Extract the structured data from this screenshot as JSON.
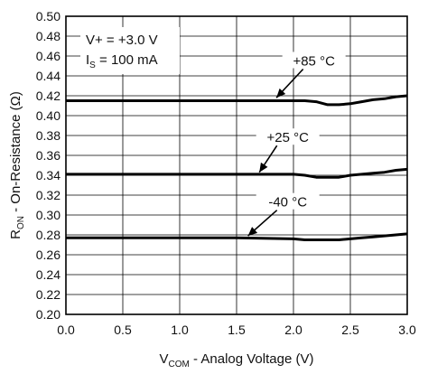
{
  "chart_data": {
    "type": "line",
    "xlabel": {
      "main": "V",
      "sub": "COM",
      "rest": " - Analog Voltage (V)"
    },
    "ylabel": {
      "main": "R",
      "sub": "ON",
      "rest": " - On-Resistance (Ω)"
    },
    "xlim": [
      0.0,
      3.0
    ],
    "ylim": [
      0.2,
      0.5
    ],
    "x_ticks": [
      "0.0",
      "0.5",
      "1.0",
      "1.5",
      "2.0",
      "2.5",
      "3.0"
    ],
    "y_ticks": [
      "0.20",
      "0.22",
      "0.24",
      "0.26",
      "0.28",
      "0.30",
      "0.32",
      "0.34",
      "0.36",
      "0.38",
      "0.40",
      "0.42",
      "0.44",
      "0.46",
      "0.48",
      "0.50"
    ],
    "grid": true,
    "conditions": [
      {
        "main": "V+ = +3.0 V",
        "sub": ""
      },
      {
        "main": "I",
        "sub": "S",
        "rest": " = 100 mA"
      }
    ],
    "series": [
      {
        "name": "+85 °C",
        "x": [
          0.0,
          0.5,
          1.0,
          1.5,
          2.0,
          2.1,
          2.2,
          2.3,
          2.4,
          2.5,
          2.6,
          2.7,
          2.8,
          2.9,
          3.0
        ],
        "y": [
          0.415,
          0.415,
          0.415,
          0.415,
          0.415,
          0.415,
          0.414,
          0.411,
          0.411,
          0.412,
          0.414,
          0.416,
          0.417,
          0.419,
          0.42
        ]
      },
      {
        "name": "+25 °C",
        "x": [
          0.0,
          0.5,
          1.0,
          1.5,
          2.0,
          2.1,
          2.2,
          2.3,
          2.4,
          2.5,
          2.6,
          2.7,
          2.8,
          2.9,
          3.0
        ],
        "y": [
          0.341,
          0.341,
          0.341,
          0.341,
          0.341,
          0.34,
          0.338,
          0.338,
          0.338,
          0.34,
          0.341,
          0.342,
          0.343,
          0.345,
          0.346
        ]
      },
      {
        "name": "-40 °C",
        "x": [
          0.0,
          0.5,
          1.0,
          1.5,
          2.0,
          2.1,
          2.2,
          2.3,
          2.4,
          2.5,
          2.6,
          2.7,
          2.8,
          2.9,
          3.0
        ],
        "y": [
          0.277,
          0.277,
          0.277,
          0.277,
          0.276,
          0.275,
          0.275,
          0.275,
          0.275,
          0.276,
          0.277,
          0.278,
          0.279,
          0.28,
          0.281
        ]
      }
    ],
    "annotations": [
      {
        "series": "+85 °C",
        "label": "+85 °C",
        "arrow_tip": [
          1.85,
          0.418
        ],
        "label_at": [
          2.18,
          0.455
        ]
      },
      {
        "series": "+25 °C",
        "label": "+25 °C",
        "arrow_tip": [
          1.7,
          0.343
        ],
        "label_at": [
          1.95,
          0.378
        ]
      },
      {
        "series": "-40 °C",
        "label": "-40 °C",
        "arrow_tip": [
          1.6,
          0.279
        ],
        "label_at": [
          1.95,
          0.313
        ]
      }
    ],
    "colors": {
      "line": "#000000",
      "grid": "#000000",
      "background": "#ffffff"
    }
  }
}
